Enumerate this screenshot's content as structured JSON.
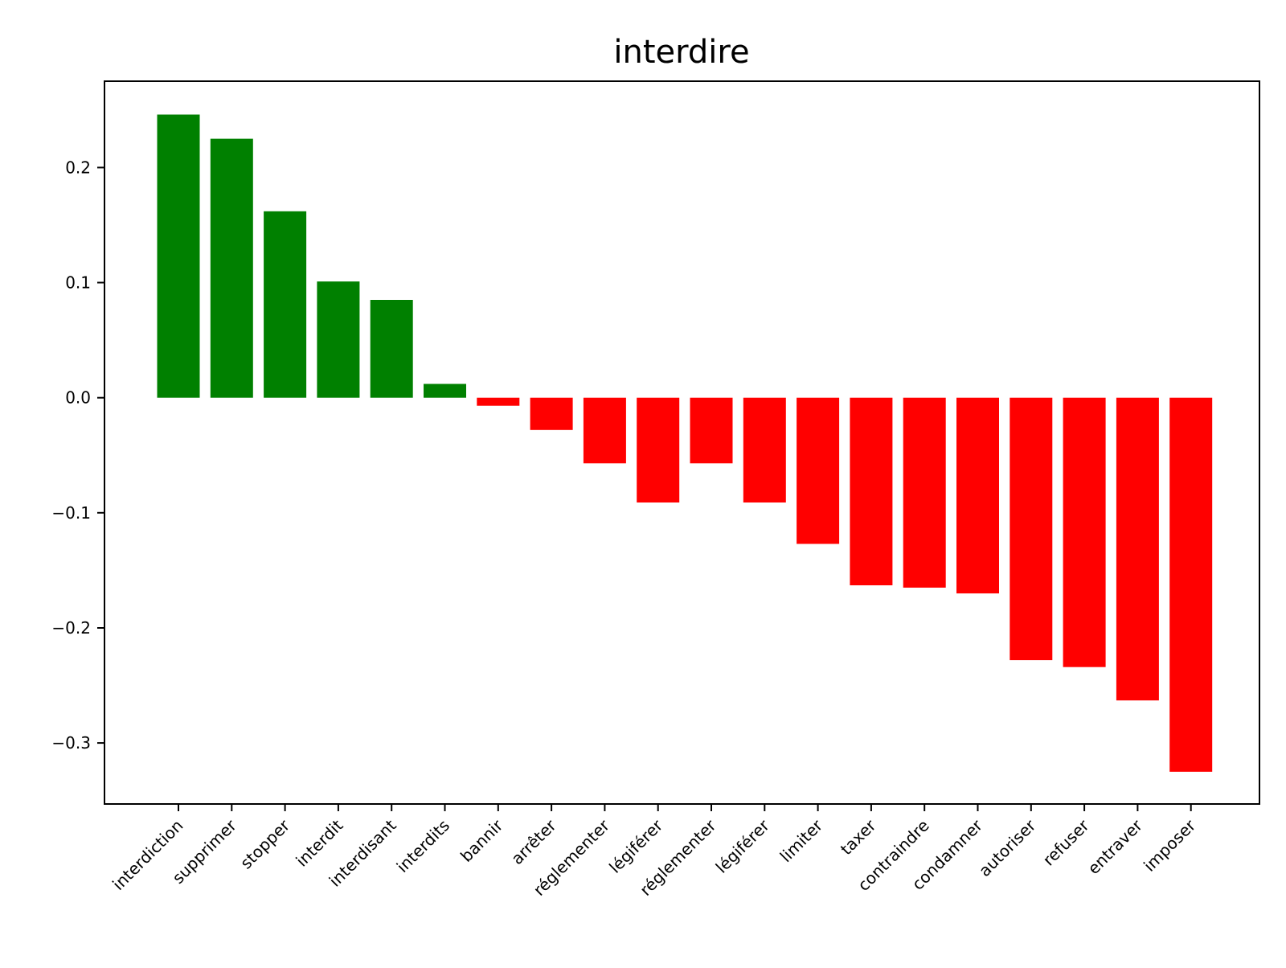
{
  "chart_data": {
    "type": "bar",
    "title": "interdire",
    "xlabel": "",
    "ylabel": "",
    "categories": [
      "interdiction",
      "supprimer",
      "stopper",
      "interdit",
      "interdisant",
      "interdits",
      "bannir",
      "arrêter",
      "réglementer",
      "légiférer",
      "réglementer",
      "légiférer",
      "limiter",
      "taxer",
      "contraindre",
      "condamner",
      "autoriser",
      "refuser",
      "entraver",
      "imposer"
    ],
    "values": [
      0.246,
      0.225,
      0.162,
      0.101,
      0.085,
      0.012,
      -0.007,
      -0.028,
      -0.057,
      -0.091,
      -0.057,
      -0.091,
      -0.127,
      -0.163,
      -0.165,
      -0.17,
      -0.228,
      -0.234,
      -0.263,
      -0.325
    ],
    "ylim": [
      -0.353,
      0.275
    ],
    "yticks": [
      0.2,
      0.1,
      0.0,
      -0.1,
      -0.2,
      -0.3
    ],
    "ytick_labels": [
      "0.2",
      "0.1",
      "0.0",
      "−0.1",
      "−0.2",
      "−0.3"
    ],
    "colors": {
      "positive": "#008000",
      "negative": "#ff0000"
    },
    "grid": false,
    "legend": false
  }
}
